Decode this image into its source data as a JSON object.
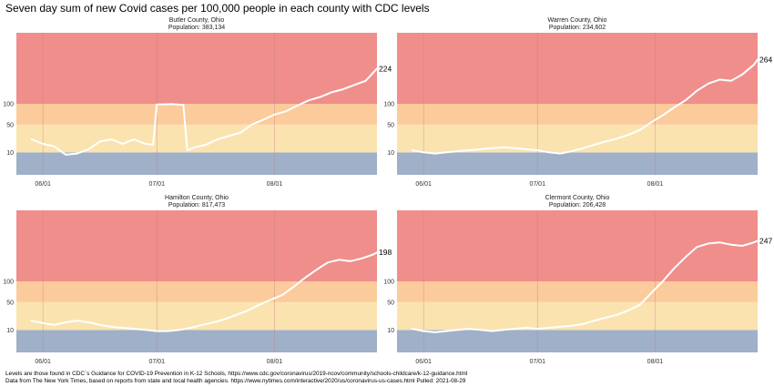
{
  "page_title": "Seven day sum of new Covid cases per 100,000 people in each county with CDC levels",
  "captions": {
    "line1": "Levels are those found in CDC`s Guidance for COVID-19 Prevention in K-12 Schools, https://www.cdc.gov/coronavirus/2019-ncov/community/schools-childcare/k-12-guidance.html",
    "line2": "Data from The New York Times, based on reports from state and local health agencies. https://www.nytimes.com/interactive/2020/us/coronavirus-us-cases.html Pulled: 2021-08-29"
  },
  "colors": {
    "low": "#9fb0c8",
    "moderate": "#fbe3b0",
    "substantial": "#fbcb9c",
    "high": "#ef8e8b",
    "line": "#ffffff",
    "vertical_grid": "#c77f7f"
  },
  "chart_data": [
    {
      "type": "line",
      "title": "Butler County, Ohio",
      "subtitle": "Population: 383,134",
      "x_ticks": [
        "06/01",
        "07/01",
        "08/01"
      ],
      "y_ticks": [
        10,
        50,
        100
      ],
      "y_axis": "square-root",
      "ylim": [
        0,
        400
      ],
      "cdc_levels": [
        {
          "name": "low",
          "from": 0,
          "to": 10
        },
        {
          "name": "moderate",
          "from": 10,
          "to": 50
        },
        {
          "name": "substantial",
          "from": 50,
          "to": 100
        },
        {
          "name": "high",
          "from": 100,
          "to": 400
        }
      ],
      "series": [
        {
          "end_label": "224",
          "x": [
            "2021-05-29",
            "2021-06-01",
            "2021-06-04",
            "2021-06-07",
            "2021-06-10",
            "2021-06-13",
            "2021-06-16",
            "2021-06-19",
            "2021-06-22",
            "2021-06-25",
            "2021-06-28",
            "2021-06-30",
            "2021-07-01",
            "2021-07-05",
            "2021-07-08",
            "2021-07-09",
            "2021-07-11",
            "2021-07-14",
            "2021-07-17",
            "2021-07-20",
            "2021-07-23",
            "2021-07-26",
            "2021-07-29",
            "2021-08-01",
            "2021-08-04",
            "2021-08-07",
            "2021-08-10",
            "2021-08-13",
            "2021-08-16",
            "2021-08-19",
            "2021-08-22",
            "2021-08-25",
            "2021-08-28"
          ],
          "values": [
            25,
            19,
            16,
            8,
            9,
            13,
            22,
            25,
            19,
            25,
            19,
            18,
            98,
            99,
            97,
            12,
            15,
            18,
            25,
            30,
            35,
            50,
            60,
            72,
            80,
            95,
            110,
            120,
            135,
            145,
            160,
            175,
            224
          ]
        }
      ]
    },
    {
      "type": "line",
      "title": "Warren County, Ohio",
      "subtitle": "Population: 234,602",
      "x_ticks": [
        "06/01",
        "07/01",
        "08/01"
      ],
      "y_ticks": [
        10,
        50,
        100
      ],
      "y_axis": "square-root",
      "ylim": [
        0,
        400
      ],
      "cdc_levels": [
        {
          "name": "low",
          "from": 0,
          "to": 10
        },
        {
          "name": "moderate",
          "from": 10,
          "to": 50
        },
        {
          "name": "substantial",
          "from": 50,
          "to": 100
        },
        {
          "name": "high",
          "from": 100,
          "to": 400
        }
      ],
      "series": [
        {
          "end_label": "264",
          "x": [
            "2021-05-29",
            "2021-06-01",
            "2021-06-04",
            "2021-06-07",
            "2021-06-10",
            "2021-06-13",
            "2021-06-16",
            "2021-06-19",
            "2021-06-22",
            "2021-06-25",
            "2021-06-28",
            "2021-07-01",
            "2021-07-04",
            "2021-07-07",
            "2021-07-10",
            "2021-07-13",
            "2021-07-16",
            "2021-07-19",
            "2021-07-22",
            "2021-07-25",
            "2021-07-28",
            "2021-07-31",
            "2021-08-03",
            "2021-08-06",
            "2021-08-09",
            "2021-08-12",
            "2021-08-15",
            "2021-08-18",
            "2021-08-21",
            "2021-08-24",
            "2021-08-27",
            "2021-08-28"
          ],
          "values": [
            12,
            10,
            9,
            10,
            11,
            12,
            13,
            14,
            15,
            14,
            13,
            12,
            10,
            9,
            11,
            14,
            18,
            22,
            26,
            32,
            40,
            55,
            70,
            90,
            110,
            140,
            165,
            180,
            175,
            200,
            240,
            264
          ]
        }
      ]
    },
    {
      "type": "line",
      "title": "Hamilton County, Ohio",
      "subtitle": "Population: 817,473",
      "x_ticks": [
        "06/01",
        "07/01",
        "08/01"
      ],
      "y_ticks": [
        10,
        50,
        100
      ],
      "y_axis": "square-root",
      "ylim": [
        0,
        400
      ],
      "cdc_levels": [
        {
          "name": "low",
          "from": 0,
          "to": 10
        },
        {
          "name": "moderate",
          "from": 10,
          "to": 50
        },
        {
          "name": "substantial",
          "from": 50,
          "to": 100
        },
        {
          "name": "high",
          "from": 100,
          "to": 400
        }
      ],
      "series": [
        {
          "end_label": "198",
          "x": [
            "2021-05-29",
            "2021-06-01",
            "2021-06-04",
            "2021-06-07",
            "2021-06-10",
            "2021-06-13",
            "2021-06-16",
            "2021-06-19",
            "2021-06-22",
            "2021-06-25",
            "2021-06-28",
            "2021-07-01",
            "2021-07-04",
            "2021-07-07",
            "2021-07-10",
            "2021-07-13",
            "2021-07-16",
            "2021-07-19",
            "2021-07-22",
            "2021-07-25",
            "2021-07-28",
            "2021-07-31",
            "2021-08-03",
            "2021-08-06",
            "2021-08-09",
            "2021-08-12",
            "2021-08-15",
            "2021-08-18",
            "2021-08-21",
            "2021-08-24",
            "2021-08-27",
            "2021-08-28"
          ],
          "values": [
            20,
            17,
            15,
            18,
            20,
            18,
            15,
            13,
            12,
            11,
            10,
            9,
            9,
            10,
            12,
            15,
            18,
            22,
            28,
            35,
            45,
            55,
            65,
            85,
            110,
            135,
            160,
            170,
            165,
            175,
            190,
            198
          ]
        }
      ]
    },
    {
      "type": "line",
      "title": "Clermont County, Ohio",
      "subtitle": "Population: 206,428",
      "x_ticks": [
        "06/01",
        "07/01",
        "08/01"
      ],
      "y_ticks": [
        10,
        50,
        100
      ],
      "y_axis": "square-root",
      "ylim": [
        0,
        400
      ],
      "cdc_levels": [
        {
          "name": "low",
          "from": 0,
          "to": 10
        },
        {
          "name": "moderate",
          "from": 10,
          "to": 50
        },
        {
          "name": "substantial",
          "from": 50,
          "to": 100
        },
        {
          "name": "high",
          "from": 100,
          "to": 400
        }
      ],
      "series": [
        {
          "end_label": "247",
          "x": [
            "2021-05-29",
            "2021-06-01",
            "2021-06-04",
            "2021-06-07",
            "2021-06-10",
            "2021-06-13",
            "2021-06-16",
            "2021-06-19",
            "2021-06-22",
            "2021-06-25",
            "2021-06-28",
            "2021-07-01",
            "2021-07-04",
            "2021-07-07",
            "2021-07-10",
            "2021-07-13",
            "2021-07-16",
            "2021-07-19",
            "2021-07-22",
            "2021-07-25",
            "2021-07-28",
            "2021-07-31",
            "2021-08-03",
            "2021-08-06",
            "2021-08-09",
            "2021-08-12",
            "2021-08-15",
            "2021-08-18",
            "2021-08-21",
            "2021-08-24",
            "2021-08-27",
            "2021-08-28"
          ],
          "values": [
            11,
            9,
            8,
            9,
            10,
            11,
            10,
            9,
            10,
            11,
            12,
            11,
            12,
            13,
            14,
            16,
            20,
            24,
            28,
            35,
            45,
            70,
            100,
            140,
            180,
            220,
            235,
            240,
            230,
            225,
            240,
            247
          ]
        }
      ]
    }
  ]
}
